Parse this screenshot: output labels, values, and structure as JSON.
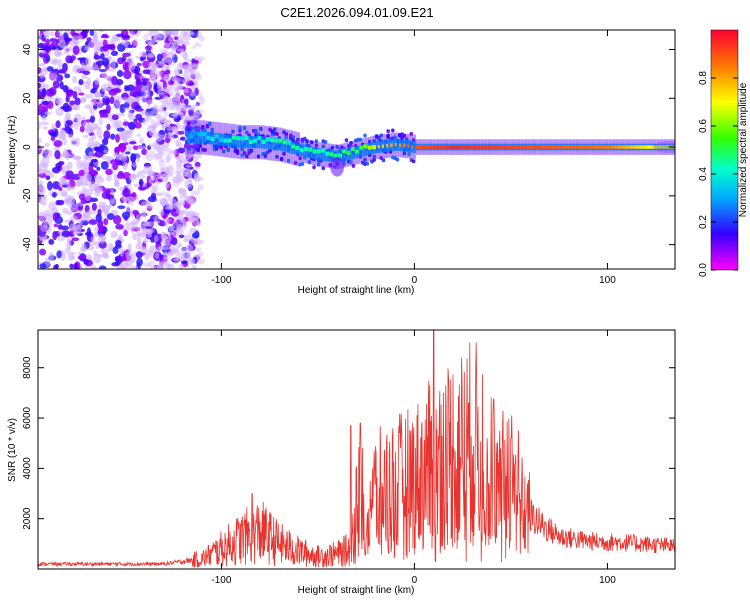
{
  "title": "C2E1.2026.094.01.09.E21",
  "colors": {
    "snr_line": "#e8332e",
    "axis": "#000000",
    "background": "#ffffff"
  },
  "chart_data": [
    {
      "type": "heatmap",
      "name": "spectrogram",
      "xlabel": "Height of straight line (km)",
      "ylabel": "Frequency (Hz)",
      "xlim": [
        -195,
        135
      ],
      "ylim": [
        -50,
        48
      ],
      "xticks": [
        -100,
        0,
        100
      ],
      "yticks": [
        -40,
        -20,
        0,
        20,
        40
      ],
      "colorbar": {
        "label": "Normalized spectral amplitude",
        "range": [
          0,
          1
        ],
        "ticks": [
          "0.0",
          "0.2",
          "0.4",
          "0.6",
          "0.8"
        ],
        "tick_values": [
          0.0,
          0.2,
          0.4,
          0.6,
          0.8
        ]
      },
      "ridge": [
        {
          "x": -118,
          "f": 4,
          "amp": 0.25
        },
        {
          "x": -110,
          "f": 4,
          "amp": 0.35
        },
        {
          "x": -100,
          "f": 3,
          "amp": 0.4
        },
        {
          "x": -90,
          "f": 2,
          "amp": 0.45
        },
        {
          "x": -80,
          "f": 2,
          "amp": 0.45
        },
        {
          "x": -70,
          "f": 1,
          "amp": 0.45
        },
        {
          "x": -60,
          "f": -1,
          "amp": 0.45
        },
        {
          "x": -50,
          "f": -3,
          "amp": 0.45
        },
        {
          "x": -40,
          "f": -4,
          "amp": 0.5
        },
        {
          "x": -30,
          "f": -2,
          "amp": 0.55
        },
        {
          "x": -20,
          "f": 0,
          "amp": 0.75
        },
        {
          "x": -10,
          "f": 1,
          "amp": 0.8
        },
        {
          "x": 0,
          "f": 0,
          "amp": 0.9
        },
        {
          "x": 20,
          "f": 0,
          "amp": 0.95
        },
        {
          "x": 60,
          "f": 0,
          "amp": 0.9
        },
        {
          "x": 100,
          "f": 0,
          "amp": 0.85
        },
        {
          "x": 135,
          "f": 0,
          "amp": 0.6
        }
      ]
    },
    {
      "type": "line",
      "name": "snr",
      "xlabel": "Height of straight line (km)",
      "ylabel": "SNR (10 * v/v)",
      "xlim": [
        -195,
        135
      ],
      "ylim": [
        0,
        9500
      ],
      "xticks": [
        -100,
        0,
        100
      ],
      "yticks": [
        2000,
        4000,
        6000,
        8000
      ],
      "envelope": [
        {
          "x": -195,
          "y": 200
        },
        {
          "x": -130,
          "y": 200
        },
        {
          "x": -110,
          "y": 400
        },
        {
          "x": -100,
          "y": 800
        },
        {
          "x": -90,
          "y": 1200
        },
        {
          "x": -80,
          "y": 1500
        },
        {
          "x": -70,
          "y": 1000
        },
        {
          "x": -60,
          "y": 700
        },
        {
          "x": -50,
          "y": 500
        },
        {
          "x": -40,
          "y": 600
        },
        {
          "x": -33,
          "y": 800
        },
        {
          "x": -30,
          "y": 2700
        },
        {
          "x": -20,
          "y": 3000
        },
        {
          "x": -10,
          "y": 3300
        },
        {
          "x": 0,
          "y": 3600
        },
        {
          "x": 10,
          "y": 4200
        },
        {
          "x": 20,
          "y": 4700
        },
        {
          "x": 30,
          "y": 5000
        },
        {
          "x": 38,
          "y": 4700
        },
        {
          "x": 44,
          "y": 3000
        },
        {
          "x": 50,
          "y": 4400
        },
        {
          "x": 56,
          "y": 2400
        },
        {
          "x": 65,
          "y": 1800
        },
        {
          "x": 75,
          "y": 1300
        },
        {
          "x": 90,
          "y": 1100
        },
        {
          "x": 110,
          "y": 1050
        },
        {
          "x": 135,
          "y": 900
        }
      ],
      "spikes": [
        {
          "x": -84,
          "y": 3000
        },
        {
          "x": -33,
          "y": 5700
        },
        {
          "x": -28,
          "y": 5800
        },
        {
          "x": 10,
          "y": 9500
        },
        {
          "x": 11,
          "y": 300
        },
        {
          "x": 28,
          "y": 6600
        },
        {
          "x": 41,
          "y": 6750
        },
        {
          "x": 50,
          "y": 5200
        }
      ]
    }
  ]
}
